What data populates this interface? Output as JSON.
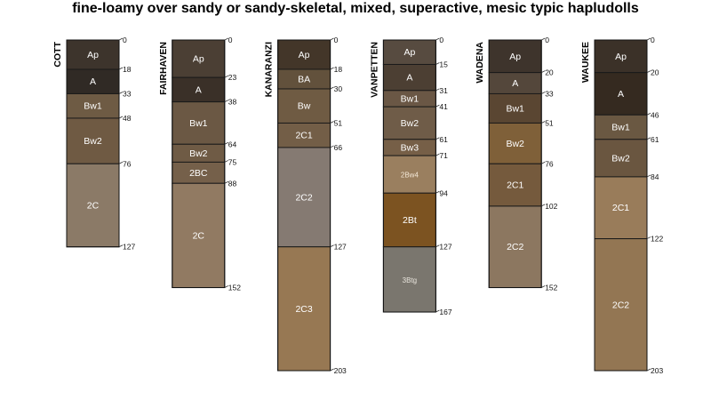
{
  "chart_data": {
    "type": "soil-profile",
    "title": "fine-loamy over sandy or sandy-skeletal, mixed, superactive, mesic typic hapludolls",
    "depth_units": "cm",
    "depth_range": [
      0,
      203
    ],
    "profiles": [
      {
        "name": "COTT",
        "bottom": 127,
        "horizons": [
          {
            "name": "Ap",
            "top": 0,
            "bottom": 18,
            "color": "#3d342c",
            "label_color": "#ffffff"
          },
          {
            "name": "A",
            "top": 18,
            "bottom": 33,
            "color": "#302a25",
            "label_color": "#ffffff"
          },
          {
            "name": "Bw1",
            "top": 33,
            "bottom": 48,
            "color": "#6e5b44",
            "label_color": "#ffffff"
          },
          {
            "name": "Bw2",
            "top": 48,
            "bottom": 76,
            "color": "#6f5a43",
            "label_color": "#ffffff"
          },
          {
            "name": "2C",
            "top": 76,
            "bottom": 127,
            "color": "#8b7a67",
            "label_color": "#ffffff"
          }
        ],
        "depth_ticks": [
          "0",
          "18",
          "33",
          "48",
          "76",
          "127"
        ]
      },
      {
        "name": "FAIRHAVEN",
        "bottom": 152,
        "horizons": [
          {
            "name": "Ap",
            "top": 0,
            "bottom": 23,
            "color": "#4b3f34",
            "label_color": "#ffffff"
          },
          {
            "name": "A",
            "top": 23,
            "bottom": 38,
            "color": "#3a3028",
            "label_color": "#ffffff"
          },
          {
            "name": "Bw1",
            "top": 38,
            "bottom": 64,
            "color": "#6b5844",
            "label_color": "#ffffff"
          },
          {
            "name": "Bw2",
            "top": 64,
            "bottom": 75,
            "color": "#6f5b45",
            "label_color": "#ffffff"
          },
          {
            "name": "2BC",
            "top": 75,
            "bottom": 88,
            "color": "#75604a",
            "label_color": "#ffffff"
          },
          {
            "name": "2C",
            "top": 88,
            "bottom": 152,
            "color": "#917a62",
            "label_color": "#ffffff"
          }
        ],
        "depth_ticks": [
          "0",
          "23",
          "38",
          "64",
          "75",
          "88",
          "152"
        ]
      },
      {
        "name": "KANARANZI",
        "bottom": 203,
        "horizons": [
          {
            "name": "Ap",
            "top": 0,
            "bottom": 18,
            "color": "#433629",
            "label_color": "#ffffff"
          },
          {
            "name": "BA",
            "top": 18,
            "bottom": 30,
            "color": "#62513c",
            "label_color": "#ffffff"
          },
          {
            "name": "Bw",
            "top": 30,
            "bottom": 51,
            "color": "#6f5b43",
            "label_color": "#ffffff"
          },
          {
            "name": "2C1",
            "top": 51,
            "bottom": 66,
            "color": "#735e47",
            "label_color": "#ffffff"
          },
          {
            "name": "2C2",
            "top": 66,
            "bottom": 127,
            "color": "#857a72",
            "label_color": "#ffffff"
          },
          {
            "name": "2C3",
            "top": 127,
            "bottom": 203,
            "color": "#977853",
            "label_color": "#ffffff"
          }
        ],
        "depth_ticks": [
          "0",
          "18",
          "30",
          "51",
          "66",
          "127",
          "203"
        ]
      },
      {
        "name": "VANPETTEN",
        "bottom": 167,
        "horizons": [
          {
            "name": "Ap",
            "top": 0,
            "bottom": 15,
            "color": "#574b40",
            "label_color": "#ffffff"
          },
          {
            "name": "A",
            "top": 15,
            "bottom": 31,
            "color": "#4c3f33",
            "label_color": "#ffffff"
          },
          {
            "name": "Bw1",
            "top": 31,
            "bottom": 41,
            "color": "#6a5745",
            "label_color": "#ffffff"
          },
          {
            "name": "Bw2",
            "top": 41,
            "bottom": 61,
            "color": "#6f5c48",
            "label_color": "#ffffff"
          },
          {
            "name": "Bw3",
            "top": 61,
            "bottom": 71,
            "color": "#765f47",
            "label_color": "#ffffff"
          },
          {
            "name": "2Bw4",
            "top": 71,
            "bottom": 94,
            "color": "#9a7f5f",
            "label_color": "#f2e6d5"
          },
          {
            "name": "2Bt",
            "top": 94,
            "bottom": 127,
            "color": "#7c5321",
            "label_color": "#ffffff"
          },
          {
            "name": "3Btg",
            "top": 127,
            "bottom": 167,
            "color": "#7a766e",
            "label_color": "#e8e4dc"
          }
        ],
        "depth_ticks": [
          "0",
          "15",
          "31",
          "41",
          "61",
          "71",
          "94",
          "127",
          "167"
        ]
      },
      {
        "name": "WADENA",
        "bottom": 152,
        "horizons": [
          {
            "name": "Ap",
            "top": 0,
            "bottom": 20,
            "color": "#3e342c",
            "label_color": "#ffffff"
          },
          {
            "name": "A",
            "top": 20,
            "bottom": 33,
            "color": "#54473b",
            "label_color": "#ffffff"
          },
          {
            "name": "Bw1",
            "top": 33,
            "bottom": 51,
            "color": "#5a4632",
            "label_color": "#ffffff"
          },
          {
            "name": "Bw2",
            "top": 51,
            "bottom": 76,
            "color": "#7f6039",
            "label_color": "#ffffff"
          },
          {
            "name": "2C1",
            "top": 76,
            "bottom": 102,
            "color": "#755a3d",
            "label_color": "#ffffff"
          },
          {
            "name": "2C2",
            "top": 102,
            "bottom": 152,
            "color": "#8c7760",
            "label_color": "#ffffff"
          }
        ],
        "depth_ticks": [
          "0",
          "20",
          "33",
          "51",
          "76",
          "102",
          "152"
        ]
      },
      {
        "name": "WAUKEE",
        "bottom": 203,
        "horizons": [
          {
            "name": "Ap",
            "top": 0,
            "bottom": 20,
            "color": "#3b3128",
            "label_color": "#ffffff"
          },
          {
            "name": "A",
            "top": 20,
            "bottom": 46,
            "color": "#352a20",
            "label_color": "#ffffff"
          },
          {
            "name": "Bw1",
            "top": 46,
            "bottom": 61,
            "color": "#6a5842",
            "label_color": "#ffffff"
          },
          {
            "name": "Bw2",
            "top": 61,
            "bottom": 84,
            "color": "#6a5640",
            "label_color": "#ffffff"
          },
          {
            "name": "2C1",
            "top": 84,
            "bottom": 122,
            "color": "#997c5a",
            "label_color": "#ffffff"
          },
          {
            "name": "2C2",
            "top": 122,
            "bottom": 203,
            "color": "#937653",
            "label_color": "#ffffff"
          }
        ],
        "depth_ticks": [
          "0",
          "20",
          "46",
          "61",
          "84",
          "122",
          "203"
        ]
      }
    ]
  }
}
